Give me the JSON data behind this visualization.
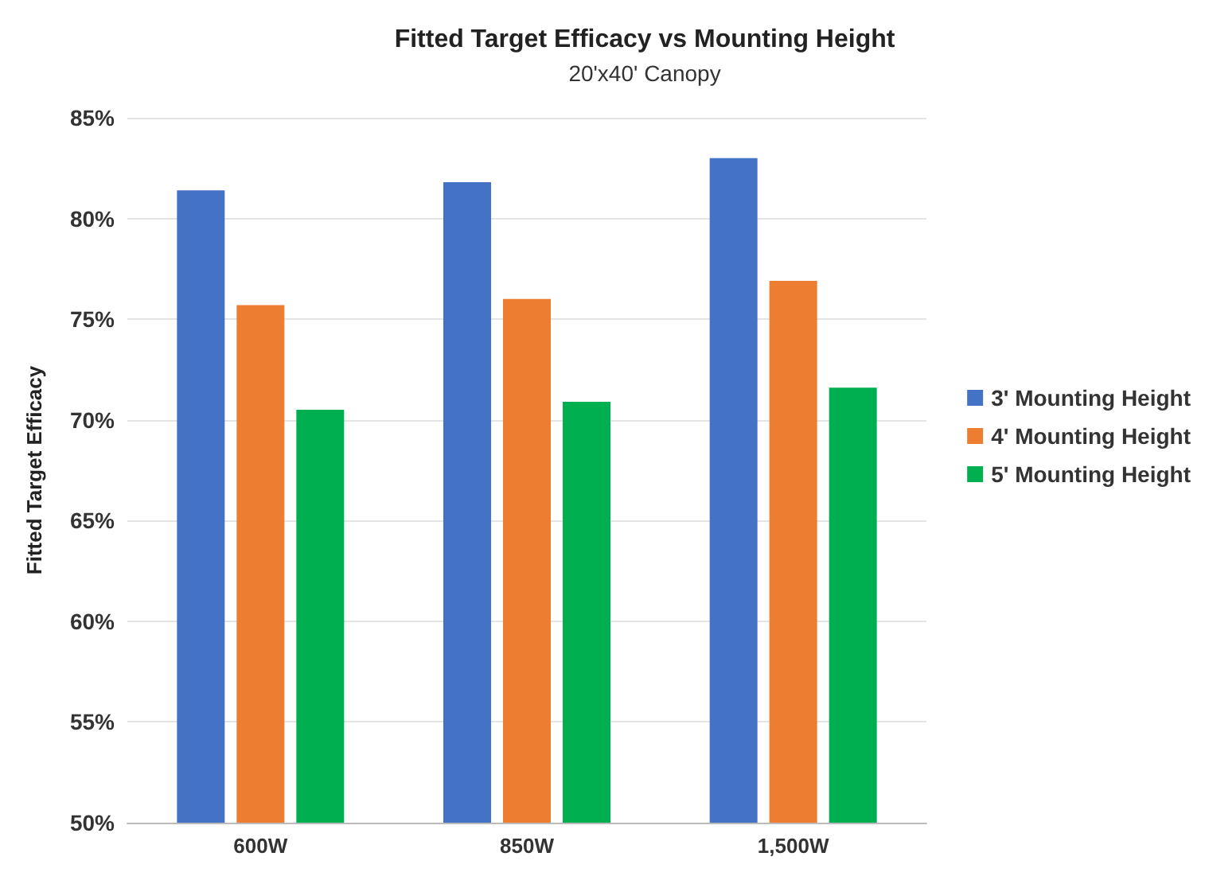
{
  "chart_data": {
    "type": "bar",
    "title": "Fitted Target Efficacy vs Mounting Height",
    "subtitle": "20'x40' Canopy",
    "ylabel": "Fitted Target Efficacy",
    "categories": [
      "600W",
      "850W",
      "1,500W"
    ],
    "series": [
      {
        "name": "3' Mounting Height",
        "color": "#4472c4",
        "values": [
          81.4,
          81.8,
          83.0
        ]
      },
      {
        "name": "4' Mounting Height",
        "color": "#ed7d31",
        "values": [
          75.7,
          76.0,
          76.9
        ]
      },
      {
        "name": "5' Mounting Height",
        "color": "#00b050",
        "values": [
          70.5,
          70.9,
          71.6
        ]
      }
    ],
    "ylim": [
      50,
      85
    ],
    "yticks": [
      {
        "value": 50,
        "label": "50%"
      },
      {
        "value": 55,
        "label": "55%"
      },
      {
        "value": 60,
        "label": "60%"
      },
      {
        "value": 65,
        "label": "65%"
      },
      {
        "value": 70,
        "label": "70%"
      },
      {
        "value": 75,
        "label": "75%"
      },
      {
        "value": 80,
        "label": "80%"
      },
      {
        "value": 85,
        "label": "85%"
      }
    ],
    "grid": "y",
    "legend": "right"
  }
}
